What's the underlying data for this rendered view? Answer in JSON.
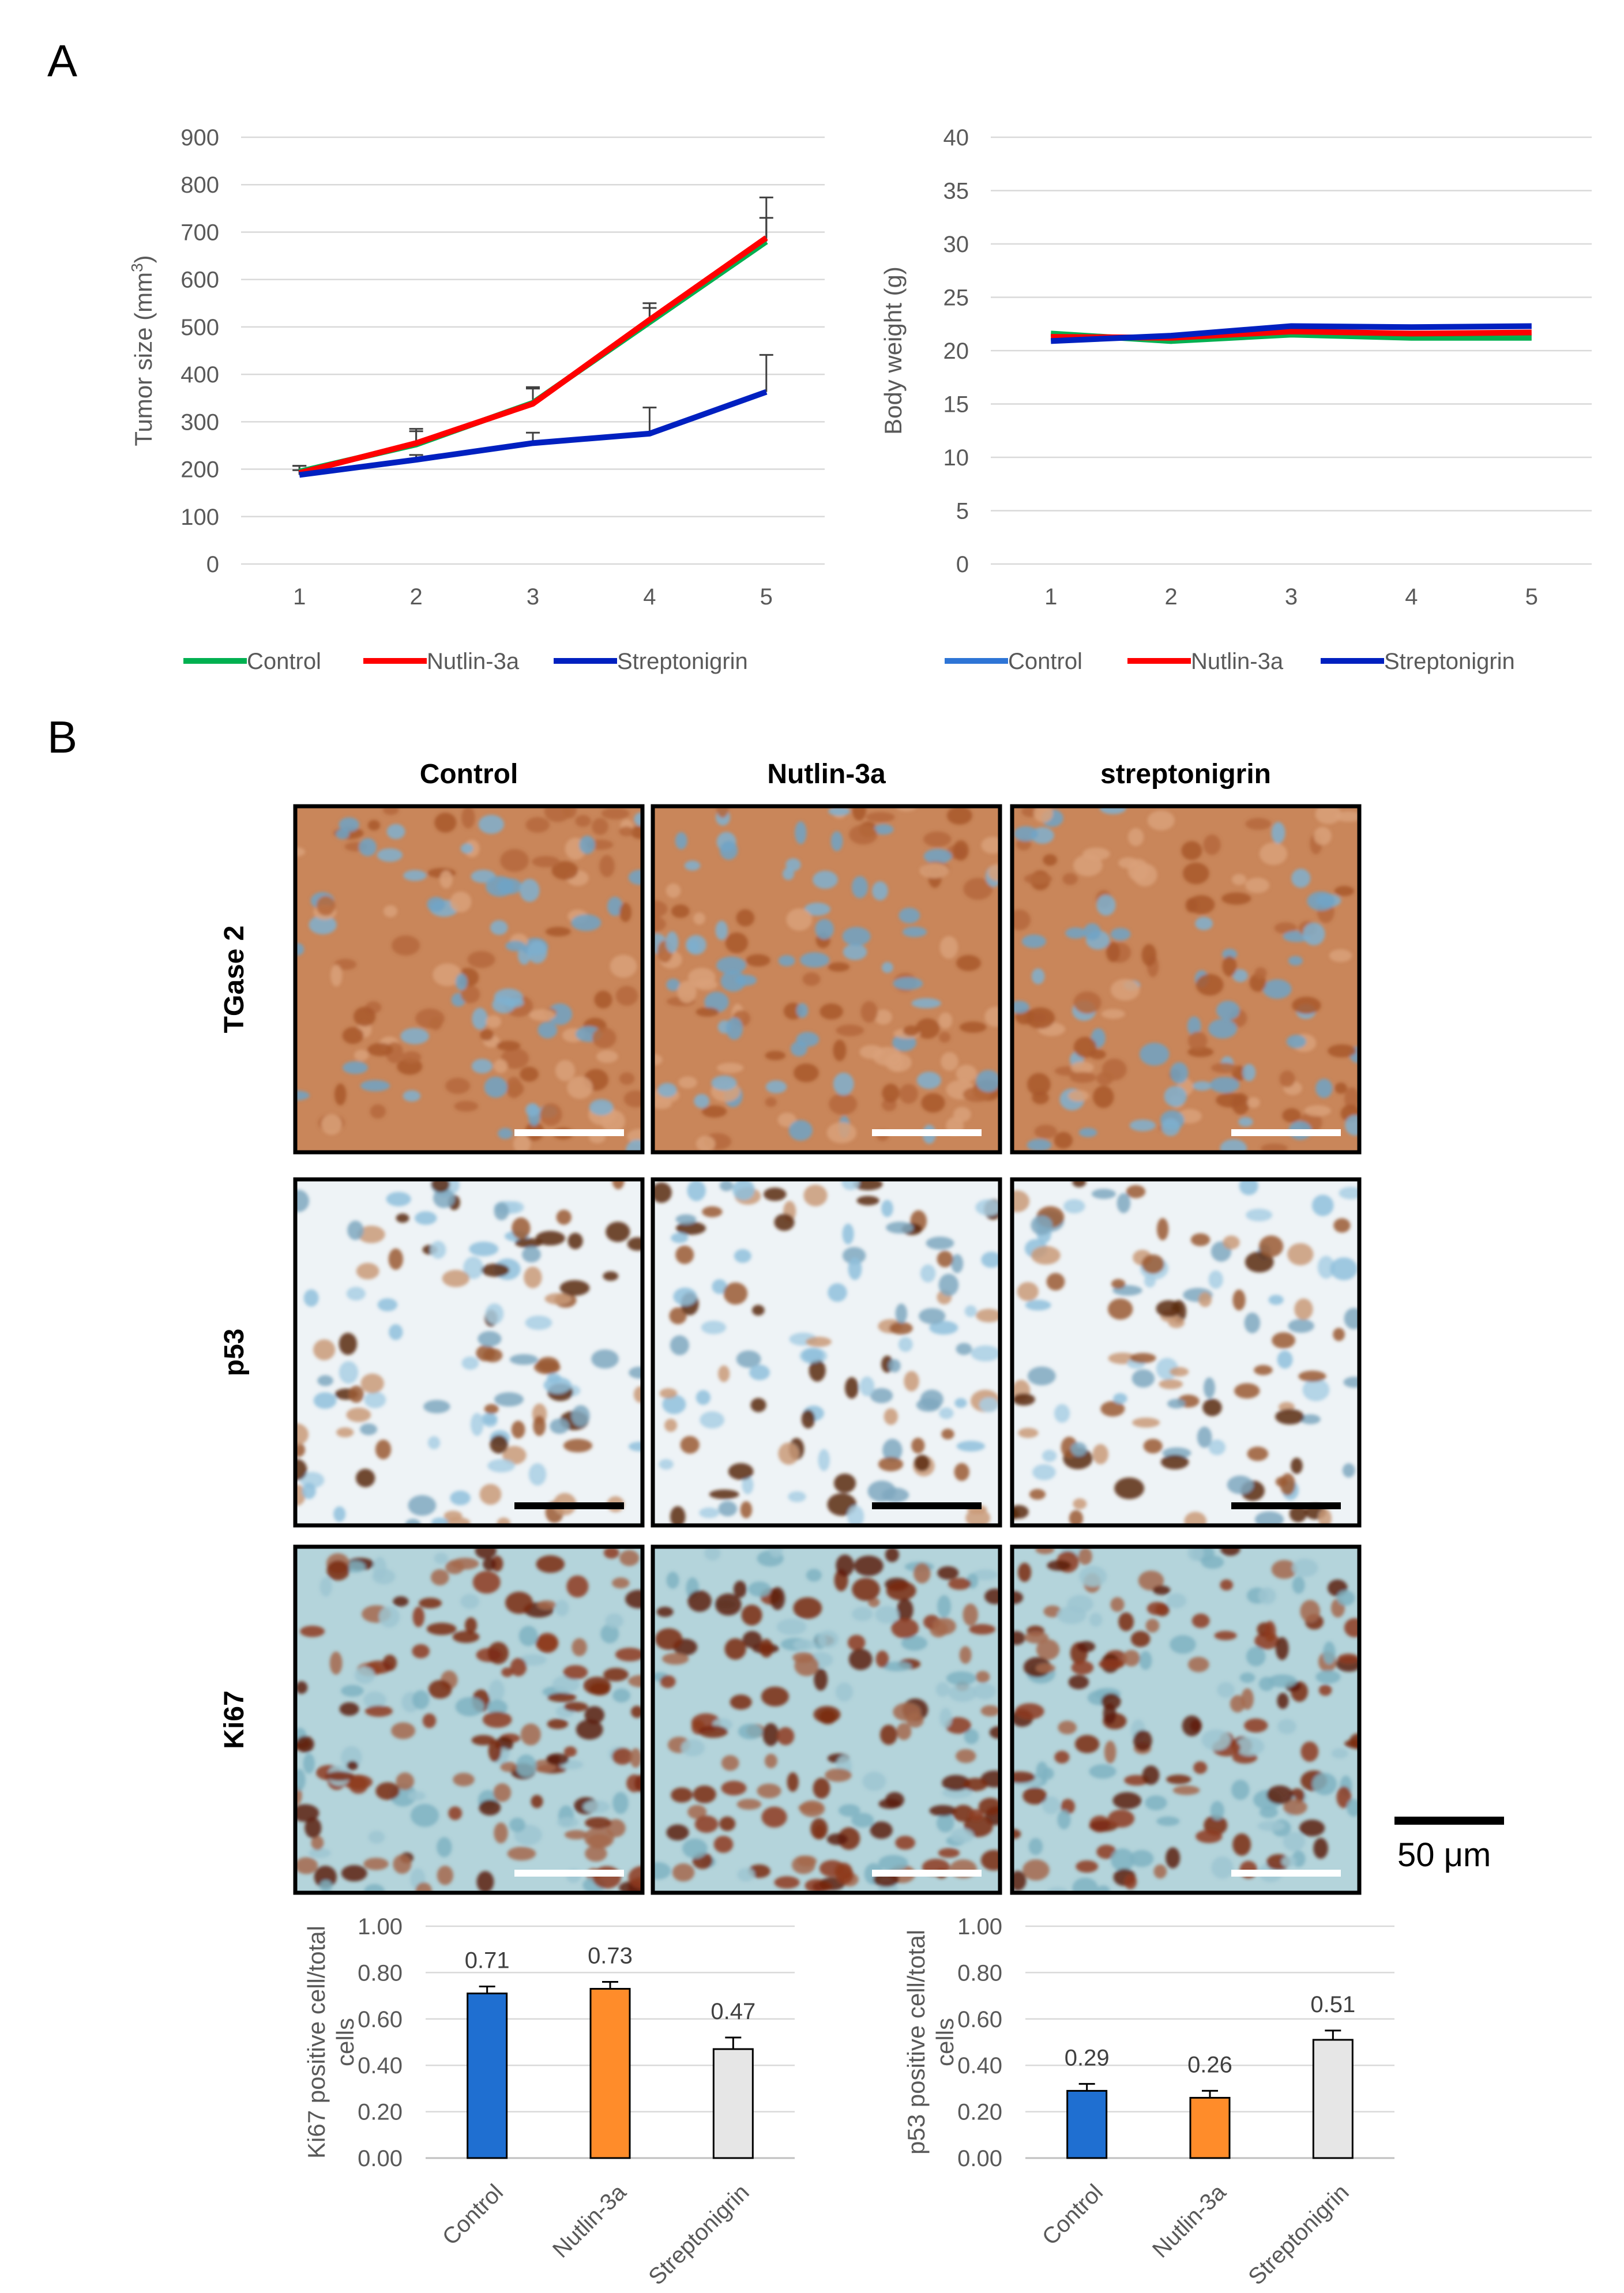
{
  "panels": {
    "a": "A",
    "b": "B"
  },
  "chart_data": [
    {
      "id": "tumor",
      "type": "line",
      "ylabel": "Tumor size (mm3)",
      "ylabel_main": "Tumor size (mm",
      "ylabel_sup": "3",
      "ylabel_end": ")",
      "x": [
        1,
        2,
        3,
        4,
        5
      ],
      "ylim": [
        0,
        900
      ],
      "yticks": [
        0,
        100,
        200,
        300,
        400,
        500,
        600,
        700,
        800,
        900
      ],
      "grid": true,
      "legend_position": "bottom",
      "series": [
        {
          "name": "Control",
          "color": "#00b050",
          "values": [
            195,
            252,
            340,
            510,
            680
          ],
          "errors": [
            12,
            28,
            30,
            30,
            50
          ]
        },
        {
          "name": "Nutlin-3a",
          "color": "#ff0000",
          "values": [
            192,
            255,
            338,
            515,
            688
          ],
          "errors": [
            15,
            30,
            35,
            35,
            85
          ]
        },
        {
          "name": "Streptonigrin",
          "color": "#0020c0",
          "values": [
            188,
            220,
            255,
            275,
            363
          ],
          "errors": [
            10,
            10,
            22,
            55,
            78
          ]
        }
      ]
    },
    {
      "id": "weight",
      "type": "line",
      "ylabel": "Body weight (g)",
      "x": [
        1,
        2,
        3,
        4,
        5
      ],
      "ylim": [
        0,
        40
      ],
      "yticks": [
        0,
        5,
        10,
        15,
        20,
        25,
        30,
        35,
        40
      ],
      "grid": true,
      "legend_position": "bottom",
      "series": [
        {
          "name": "Control",
          "color": "#00b050",
          "values": [
            21.6,
            20.9,
            21.5,
            21.2,
            21.2
          ]
        },
        {
          "name": "Nutlin-3a",
          "color": "#ff0000",
          "values": [
            21.3,
            21.2,
            21.8,
            21.6,
            21.7
          ]
        },
        {
          "name": "Streptonigrin",
          "color": "#0020c0",
          "values": [
            20.9,
            21.4,
            22.3,
            22.2,
            22.3
          ]
        }
      ],
      "legend": [
        {
          "name": "Control",
          "color": "#2e75d6"
        },
        {
          "name": "Nutlin-3a",
          "color": "#ff0000"
        },
        {
          "name": "Streptonigrin",
          "color": "#0020c0"
        }
      ]
    },
    {
      "id": "ki67",
      "type": "bar",
      "ylabel_lines": [
        "Ki67 positive cell/total",
        "cells"
      ],
      "categories": [
        "Control",
        "Nutlin-3a",
        "Streptonigrin"
      ],
      "values": [
        0.71,
        0.73,
        0.47
      ],
      "value_labels": [
        "0.71",
        "0.73",
        "0.47"
      ],
      "errors": [
        0.03,
        0.03,
        0.05
      ],
      "colors": [
        "#1f6fd1",
        "#ff8c2a",
        "#e6e6e6"
      ],
      "ylim": [
        0,
        1
      ],
      "yticks": [
        "0.00",
        "0.20",
        "0.40",
        "0.60",
        "0.80",
        "1.00"
      ],
      "grid": true
    },
    {
      "id": "p53",
      "type": "bar",
      "ylabel_lines": [
        "p53 positive cell/total",
        "cells"
      ],
      "categories": [
        "Control",
        "Nutlin-3a",
        "Streptonigrin"
      ],
      "values": [
        0.29,
        0.26,
        0.51
      ],
      "value_labels": [
        "0.29",
        "0.26",
        "0.51"
      ],
      "errors": [
        0.03,
        0.03,
        0.04
      ],
      "colors": [
        "#1f6fd1",
        "#ff8c2a",
        "#e6e6e6"
      ],
      "ylim": [
        0,
        1
      ],
      "yticks": [
        "0.00",
        "0.20",
        "0.40",
        "0.60",
        "0.80",
        "1.00"
      ],
      "grid": true
    }
  ],
  "micrographs": {
    "columns": [
      "Control",
      "Nutlin-3a",
      "streptonigrin"
    ],
    "rows": [
      "TGase 2",
      "p53",
      "Ki67"
    ],
    "scale_bar_label": "50 μm"
  }
}
